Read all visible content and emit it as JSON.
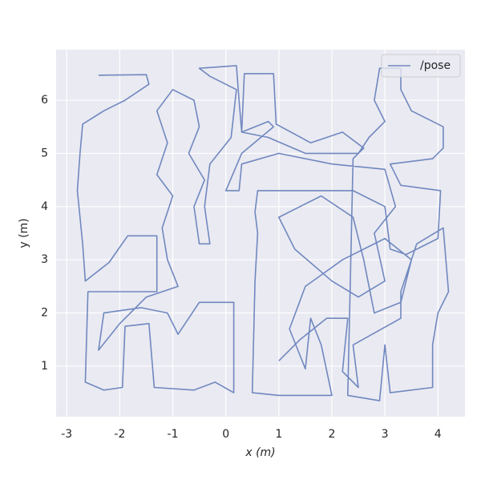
{
  "chart_data": {
    "type": "line",
    "xlabel": "x (m)",
    "ylabel": "y (m)",
    "xlim": [
      -3.2,
      4.51
    ],
    "ylim": [
      0.05,
      6.95
    ],
    "xticks": [
      -3,
      -2,
      -1,
      0,
      1,
      2,
      3,
      4
    ],
    "yticks": [
      1,
      2,
      3,
      4,
      5,
      6
    ],
    "grid": true,
    "legend": "upper right",
    "x": [
      -2.4,
      -1.5,
      -1.45,
      -1.9,
      -2.3,
      -2.7,
      -2.75,
      -2.8,
      -2.7,
      -2.65,
      -2.2,
      -1.85,
      -1.3,
      -1.3,
      -2.6,
      -2.65,
      -2.3,
      -1.95,
      -1.9,
      -1.45,
      -1.35,
      -0.6,
      -0.2,
      0.15,
      0.15,
      -0.5,
      -0.9,
      -1.1,
      -1.6,
      -2.3,
      -2.4,
      -2.0,
      -1.5,
      -0.9,
      -1.1,
      -1.2,
      -1.0,
      -1.3,
      -1.1,
      -1.3,
      -1.0,
      -0.6,
      -0.5,
      -0.7,
      -0.4,
      -0.6,
      -0.5,
      -0.3,
      -0.4,
      -0.3,
      0.1,
      0.2,
      -0.3,
      -0.5,
      0.2,
      0.25,
      0.3,
      0.8,
      0.9,
      0.3,
      0.0,
      0.25,
      0.3,
      1.0,
      2.0,
      3.0,
      3.2,
      2.8,
      3.0,
      2.5,
      2.0,
      1.3,
      1.0,
      1.8,
      2.4,
      2.6,
      2.8,
      3.3,
      3.5,
      3.0,
      2.2,
      1.5,
      1.2,
      1.5,
      1.6,
      1.8,
      2.0,
      1.0,
      0.5,
      0.55,
      0.6,
      0.55,
      0.6,
      2.4,
      3.0,
      3.1,
      3.4,
      4.0,
      4.05,
      3.3,
      3.1,
      3.9,
      4.1,
      4.1,
      3.5,
      3.3,
      3.3,
      2.9,
      2.8,
      3.0,
      2.7,
      2.5,
      1.5,
      0.8,
      0.3,
      0.35,
      0.9,
      0.95,
      1.6,
      2.2,
      2.6,
      2.4,
      2.3,
      2.9,
      3.0,
      3.1,
      3.9,
      3.9,
      4.0,
      4.2,
      4.1,
      3.6,
      3.3,
      3.3,
      2.4,
      2.5,
      2.2,
      2.3,
      1.9,
      1.4,
      1.0
    ],
    "series": [
      {
        "name": "/pose",
        "color": "#7088bf",
        "values": [
          6.47,
          6.48,
          6.3,
          6.0,
          5.8,
          5.55,
          5.0,
          4.3,
          3.3,
          2.6,
          2.95,
          3.45,
          3.45,
          2.4,
          2.4,
          0.7,
          0.55,
          0.6,
          1.75,
          1.8,
          0.6,
          0.55,
          0.7,
          0.5,
          2.2,
          2.2,
          1.6,
          2.0,
          2.1,
          2.0,
          1.3,
          1.8,
          2.3,
          2.5,
          3.0,
          3.6,
          4.2,
          4.6,
          5.2,
          5.8,
          6.2,
          6.0,
          5.5,
          5.0,
          4.5,
          4.0,
          3.3,
          3.3,
          4.0,
          4.8,
          5.3,
          6.2,
          6.45,
          6.6,
          6.65,
          6.0,
          5.4,
          5.6,
          5.5,
          5.0,
          4.3,
          4.3,
          4.8,
          5.0,
          4.8,
          4.7,
          4.0,
          3.5,
          2.6,
          2.3,
          2.6,
          3.2,
          3.8,
          4.2,
          3.8,
          3.0,
          2.0,
          2.2,
          3.0,
          3.4,
          3.0,
          2.5,
          1.7,
          0.95,
          1.9,
          1.4,
          0.45,
          0.45,
          0.5,
          2.6,
          3.5,
          3.9,
          4.3,
          4.3,
          4.0,
          3.2,
          3.1,
          3.4,
          4.3,
          4.4,
          4.8,
          4.9,
          5.1,
          5.5,
          5.8,
          6.2,
          6.6,
          6.6,
          6.0,
          5.6,
          5.3,
          5.0,
          5.0,
          5.3,
          5.4,
          6.5,
          6.5,
          5.55,
          5.2,
          5.4,
          5.1,
          4.9,
          0.45,
          0.35,
          1.4,
          0.5,
          0.6,
          1.4,
          2.0,
          2.4,
          3.6,
          3.3,
          2.4,
          1.9,
          1.4,
          0.6,
          0.9,
          1.9,
          1.9,
          1.5,
          1.1
        ]
      }
    ]
  }
}
